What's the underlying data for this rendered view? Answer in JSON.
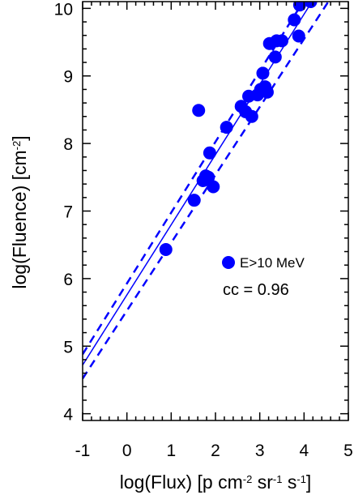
{
  "chart_data": {
    "type": "scatter",
    "xlabel": {
      "main": "log(Flux) [p cm",
      "sup1": "-2",
      "mid1": " sr",
      "sup2": "-1",
      "mid2": " s",
      "sup3": "-1",
      "end": "]"
    },
    "ylabel": {
      "main": "log(Fluence) [cm",
      "sup": "-2",
      "end": "]"
    },
    "xlim": [
      -1,
      5
    ],
    "ylim": [
      3.9,
      10.1
    ],
    "xticks": [
      "-1",
      "0",
      "1",
      "2",
      "3",
      "4",
      "5"
    ],
    "yticks": [
      "4",
      "5",
      "6",
      "7",
      "8",
      "9",
      "10"
    ],
    "series": [
      {
        "name": "E>10 MeV",
        "color": "#0000ff",
        "x": [
          0.88,
          1.52,
          1.62,
          1.72,
          1.78,
          1.84,
          1.87,
          1.95,
          2.25,
          2.58,
          2.68,
          2.75,
          2.82,
          2.95,
          3.02,
          3.07,
          3.12,
          3.17,
          3.22,
          3.35,
          3.38,
          3.5,
          3.78,
          3.88,
          3.9,
          4.15
        ],
        "y": [
          6.43,
          7.16,
          8.49,
          7.45,
          7.52,
          7.5,
          7.86,
          7.36,
          8.24,
          8.55,
          8.47,
          8.7,
          8.4,
          8.72,
          8.8,
          9.04,
          8.84,
          8.76,
          9.48,
          9.28,
          9.52,
          9.52,
          9.83,
          9.59,
          10.05,
          10.1
        ]
      }
    ],
    "fit_line": {
      "x": [
        -1,
        4.18
      ],
      "y": [
        4.72,
        10.1
      ]
    },
    "bound_upper": {
      "x": [
        -1,
        3.98
      ],
      "y": [
        4.88,
        10.1
      ]
    },
    "bound_lower": {
      "x": [
        -1,
        4.55
      ],
      "y": [
        4.52,
        10.1
      ]
    },
    "legend": {
      "label": "E>10 MeV",
      "placement": "lower-right"
    },
    "annotation": "cc = 0.96"
  }
}
